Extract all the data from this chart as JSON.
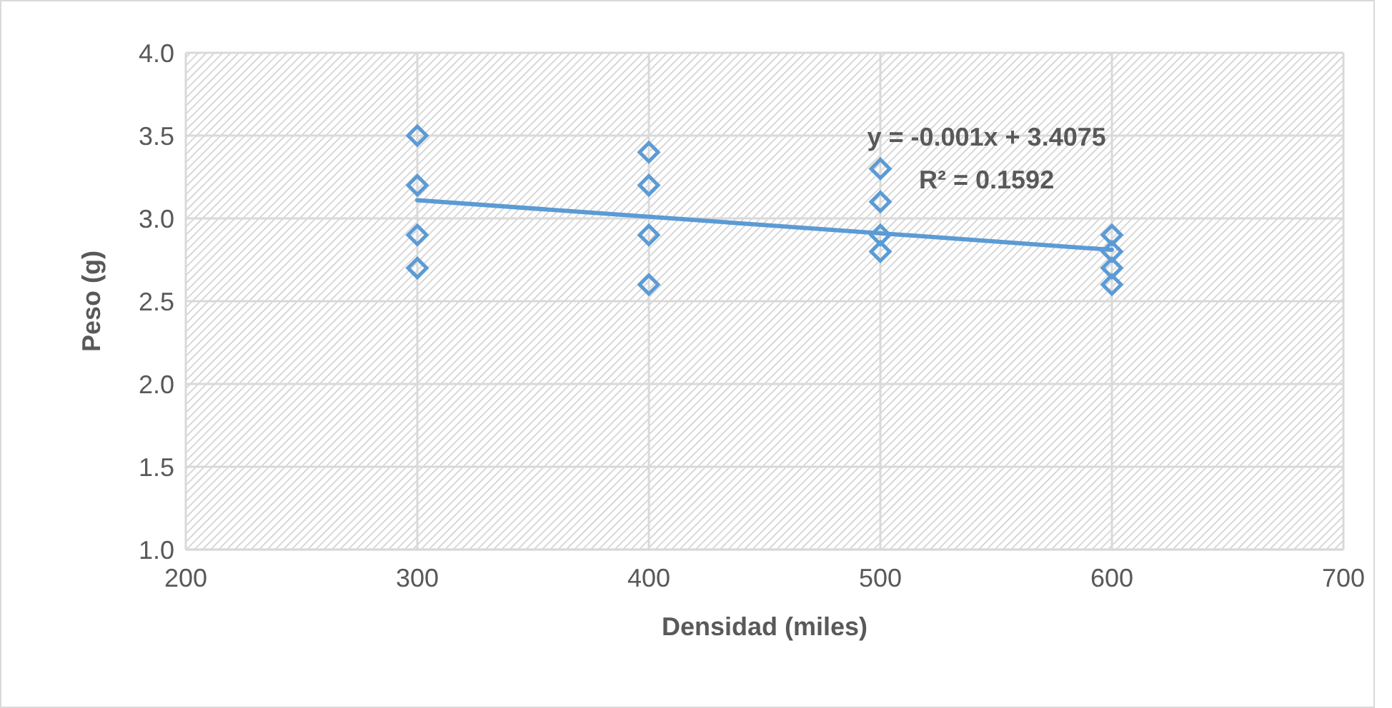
{
  "chart_data": {
    "type": "scatter",
    "xlabel": "Densidad (miles)",
    "ylabel": "Peso (g)",
    "xlim": [
      200,
      700
    ],
    "xticks": [
      200,
      300,
      400,
      500,
      600,
      700
    ],
    "ylim": [
      1.0,
      4.0
    ],
    "yticks": [
      {
        "value": 1,
        "label": "1.0"
      },
      {
        "value": 1.5,
        "label": "1.5"
      },
      {
        "value": 2,
        "label": "2.0"
      },
      {
        "value": 2.5,
        "label": "2.5"
      },
      {
        "value": 3,
        "label": "3.0"
      },
      {
        "value": 3.5,
        "label": "3.5"
      },
      {
        "value": 4,
        "label": "4.0"
      }
    ],
    "grid": true,
    "series": [
      {
        "color": "#5b9bd5",
        "marker": "diamond",
        "x": [
          300,
          300,
          300,
          300,
          400,
          400,
          400,
          400,
          500,
          500,
          500,
          500,
          600,
          600,
          600,
          600
        ],
        "values": [
          3.5,
          3.2,
          2.9,
          2.7,
          3.4,
          3.2,
          2.9,
          2.6,
          3.3,
          3.1,
          2.9,
          2.8,
          2.9,
          2.8,
          2.7,
          2.6
        ]
      },
      {
        "type": "line",
        "color": "#5b9bd5",
        "x": [
          300,
          600
        ],
        "values": [
          3.11,
          2.81
        ]
      }
    ],
    "annotations": [
      "y = -0.001x + 3.4075",
      "R² = 0.1592"
    ]
  }
}
